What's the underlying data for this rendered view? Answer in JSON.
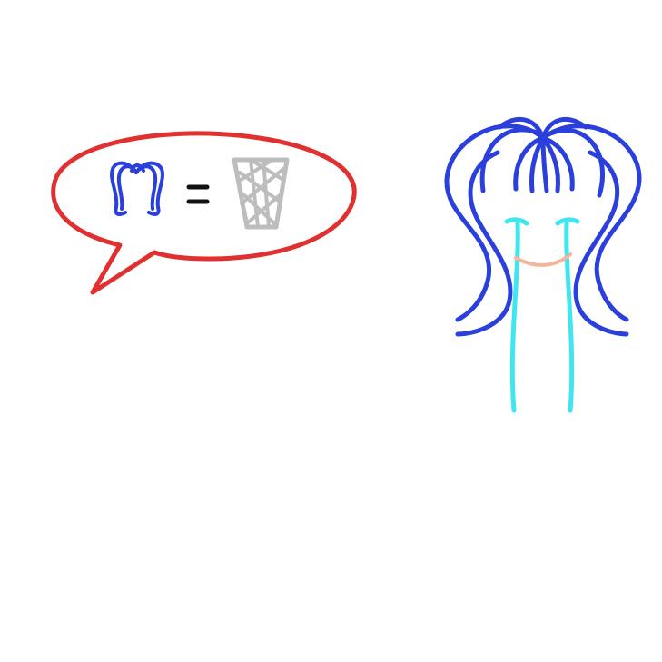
{
  "drawing": {
    "colors": {
      "bubble": "#e03030",
      "hair": "#2b3fdc",
      "tears": "#3fe6f0",
      "mouth": "#f0b79b",
      "equals": "#111111",
      "basket": "#bdbdbd",
      "background": "#ffffff"
    },
    "icons": {
      "speech_bubble": "speech-bubble-icon",
      "mini_pigtails": "pigtails-icon",
      "equals_sign": "equals-icon",
      "wastebasket": "wastebasket-icon",
      "character": "crying-girl-icon"
    }
  }
}
